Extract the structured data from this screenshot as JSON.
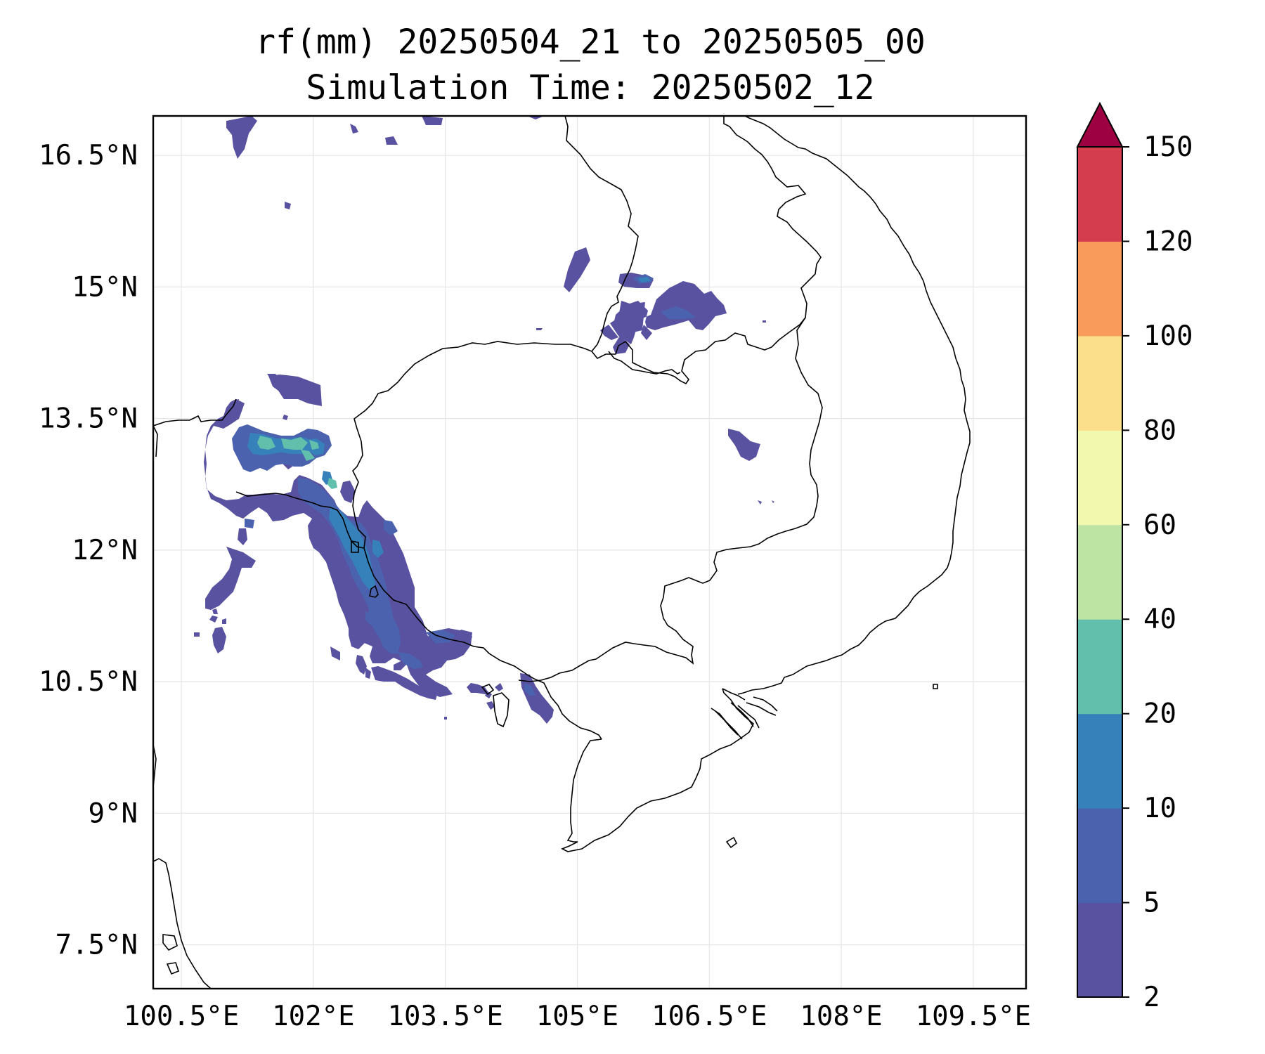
{
  "title": {
    "line1": "rf(mm) 20250504_21 to 20250505_00",
    "line2": "Simulation Time: 20250502_12"
  },
  "map": {
    "extent": {
      "lon": [
        100.18,
        110.1
      ],
      "lat": [
        7.0,
        16.95
      ]
    },
    "lon_ticks": [
      {
        "value": 100.5,
        "label": "100.5°E"
      },
      {
        "value": 102.0,
        "label": "102°E"
      },
      {
        "value": 103.5,
        "label": "103.5°E"
      },
      {
        "value": 105.0,
        "label": "105°E"
      },
      {
        "value": 106.5,
        "label": "106.5°E"
      },
      {
        "value": 108.0,
        "label": "108°E"
      },
      {
        "value": 109.5,
        "label": "109.5°E"
      }
    ],
    "lat_ticks": [
      {
        "value": 16.5,
        "label": "16.5°N"
      },
      {
        "value": 15.0,
        "label": "15°N"
      },
      {
        "value": 13.5,
        "label": "13.5°N"
      },
      {
        "value": 12.0,
        "label": "12°N"
      },
      {
        "value": 10.5,
        "label": "10.5°N"
      },
      {
        "value": 9.0,
        "label": "9°N"
      },
      {
        "value": 7.5,
        "label": "7.5°N"
      }
    ],
    "gridlines": true
  },
  "colorbar": {
    "levels": [
      {
        "value": 2,
        "label": "2"
      },
      {
        "value": 5,
        "label": "5"
      },
      {
        "value": 10,
        "label": "10"
      },
      {
        "value": 20,
        "label": "20"
      },
      {
        "value": 40,
        "label": "40"
      },
      {
        "value": 60,
        "label": "60"
      },
      {
        "value": 80,
        "label": "80"
      },
      {
        "value": 100,
        "label": "100"
      },
      {
        "value": 120,
        "label": "120"
      },
      {
        "value": 150,
        "label": "150"
      }
    ],
    "colors": [
      "#5952a0",
      "#4b62ae",
      "#3681ba",
      "#62bfab",
      "#bde4a2",
      "#f2f8ae",
      "#fcdf8b",
      "#f99b5a",
      "#d33d4e"
    ],
    "extend_color": "#9e0142",
    "extend": "max"
  }
}
